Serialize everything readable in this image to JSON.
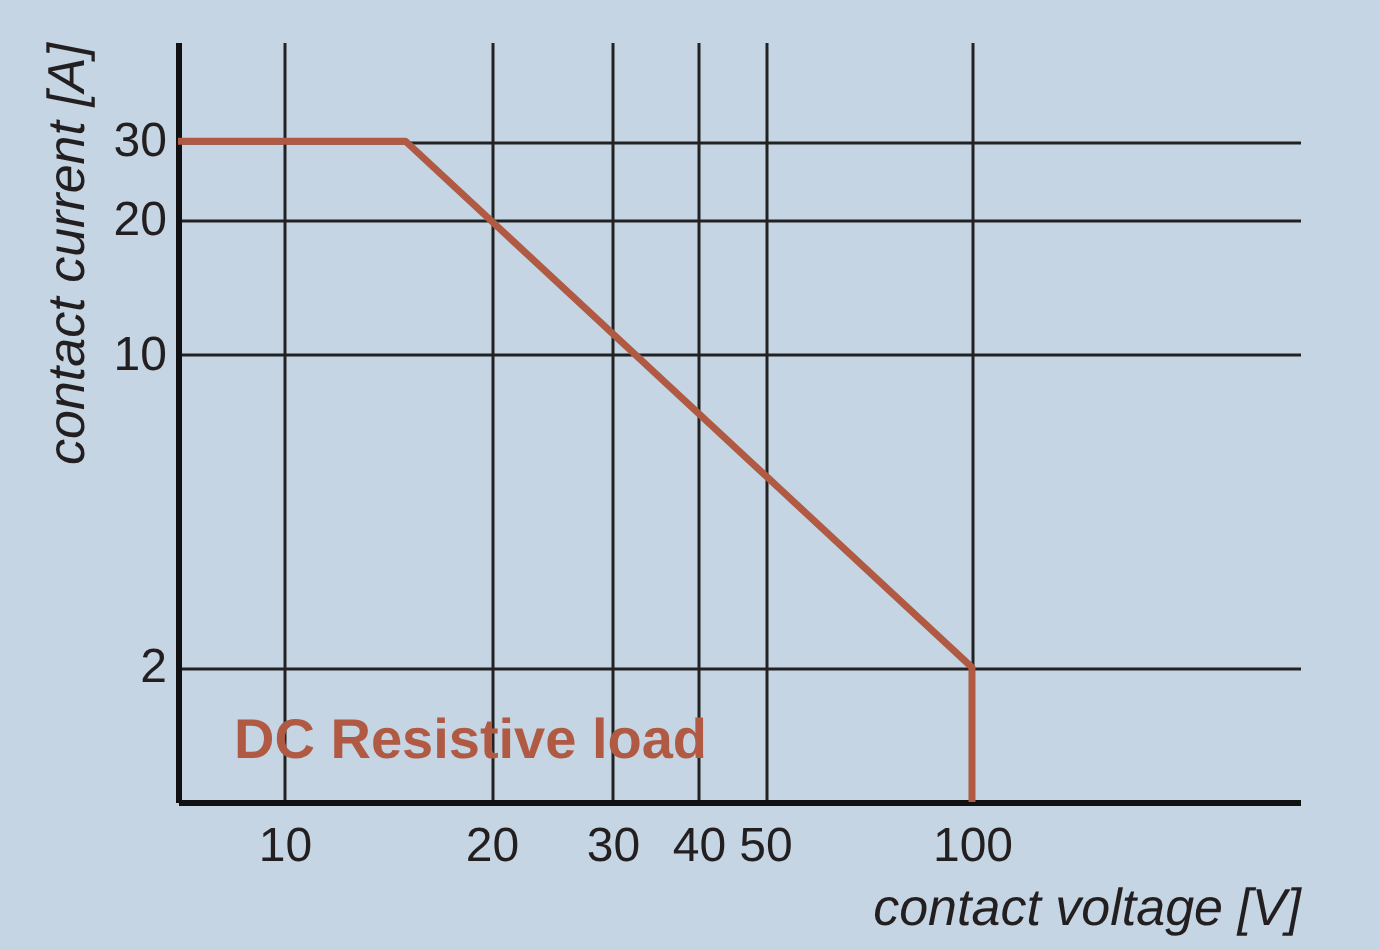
{
  "chart_data": {
    "type": "line",
    "xlabel": "contact voltage [V]",
    "ylabel": "contact current  [A]",
    "annotations": [
      "DC Resistive load"
    ],
    "x": [
      7,
      15,
      100,
      100
    ],
    "series": [
      {
        "color": "#b05a43",
        "values": [
          30,
          30,
          2,
          1
        ]
      }
    ],
    "log": "xy",
    "xlim": [
      7,
      300
    ],
    "ylim": [
      1,
      50
    ],
    "xticks": [
      10,
      20,
      30,
      40,
      50,
      100
    ],
    "yticks": [
      2,
      10,
      20,
      30
    ],
    "grid": true,
    "marker": "none",
    "line_style": "solid"
  }
}
